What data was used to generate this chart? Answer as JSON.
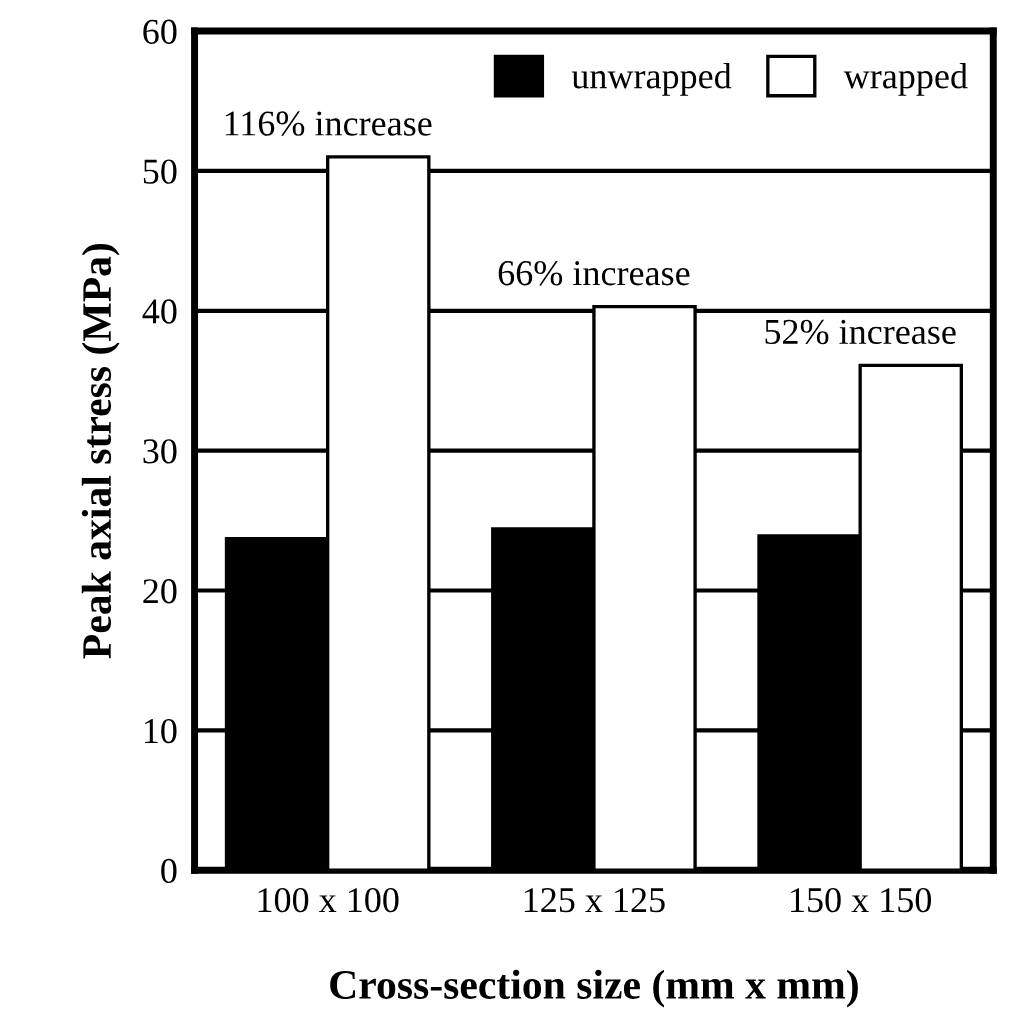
{
  "chart_data": {
    "type": "bar",
    "xlabel": "Cross-section size (mm x mm)",
    "ylabel": "Peak axial stress (MPa)",
    "categories": [
      "100 x 100",
      "125 x 125",
      "150 x 150"
    ],
    "series": [
      {
        "name": "unwrapped",
        "color": "#000000",
        "values": [
          23.7,
          24.4,
          23.9
        ]
      },
      {
        "name": "wrapped",
        "color": "#ffffff",
        "values": [
          51.0,
          40.3,
          36.1
        ]
      }
    ],
    "ylim": [
      0,
      60
    ],
    "yticks": [
      0,
      10,
      20,
      30,
      40,
      50,
      60
    ],
    "grid": "y",
    "legend": "top right",
    "annotations": [
      "116% increase",
      "66% increase",
      "52% increase"
    ]
  }
}
